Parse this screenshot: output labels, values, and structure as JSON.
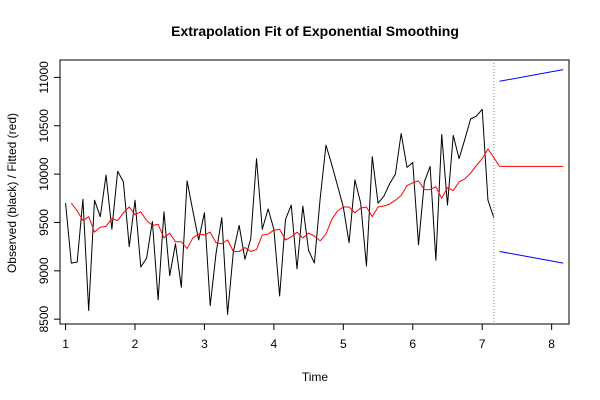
{
  "chart_data": {
    "type": "line",
    "title": "Extrapolation Fit of Exponential Smoothing",
    "xlabel": "Time",
    "ylabel": "Observed (black) / Fitted (red)",
    "xlim": [
      0.92,
      8.25
    ],
    "ylim": [
      8450,
      11180
    ],
    "x_ticks": [
      1,
      2,
      3,
      4,
      5,
      6,
      7,
      8
    ],
    "y_ticks": [
      8500,
      9000,
      9500,
      10000,
      10500,
      11000
    ],
    "forecast_origin": 7.167,
    "grid": false,
    "colors": {
      "observed": "#000000",
      "fitted": "#ff0000",
      "forecast": "#ff0000",
      "bounds": "#0000ff",
      "origin_line": "#888888"
    },
    "series": [
      {
        "key": "observed",
        "points": [
          [
            1.0,
            9700
          ],
          [
            1.083,
            9080
          ],
          [
            1.167,
            9090
          ],
          [
            1.25,
            9740
          ],
          [
            1.333,
            8590
          ],
          [
            1.417,
            9730
          ],
          [
            1.5,
            9560
          ],
          [
            1.583,
            9990
          ],
          [
            1.667,
            9430
          ],
          [
            1.75,
            10030
          ],
          [
            1.833,
            9920
          ],
          [
            1.917,
            9250
          ],
          [
            2.0,
            9730
          ],
          [
            2.083,
            9040
          ],
          [
            2.167,
            9130
          ],
          [
            2.25,
            9510
          ],
          [
            2.333,
            8700
          ],
          [
            2.417,
            9610
          ],
          [
            2.5,
            8950
          ],
          [
            2.583,
            9280
          ],
          [
            2.667,
            8830
          ],
          [
            2.75,
            9930
          ],
          [
            2.833,
            9620
          ],
          [
            2.917,
            9320
          ],
          [
            3.0,
            9600
          ],
          [
            3.083,
            8640
          ],
          [
            3.167,
            9180
          ],
          [
            3.25,
            9550
          ],
          [
            3.333,
            8550
          ],
          [
            3.417,
            9200
          ],
          [
            3.5,
            9470
          ],
          [
            3.583,
            9120
          ],
          [
            3.667,
            9330
          ],
          [
            3.75,
            10160
          ],
          [
            3.833,
            9430
          ],
          [
            3.917,
            9640
          ],
          [
            4.0,
            9430
          ],
          [
            4.083,
            8740
          ],
          [
            4.167,
            9530
          ],
          [
            4.25,
            9680
          ],
          [
            4.333,
            9020
          ],
          [
            4.417,
            9670
          ],
          [
            4.5,
            9210
          ],
          [
            4.583,
            9080
          ],
          [
            4.667,
            9750
          ],
          [
            4.75,
            10300
          ],
          [
            4.833,
            10100
          ],
          [
            4.917,
            9880
          ],
          [
            5.0,
            9660
          ],
          [
            5.083,
            9290
          ],
          [
            5.167,
            9940
          ],
          [
            5.25,
            9700
          ],
          [
            5.333,
            9050
          ],
          [
            5.417,
            10180
          ],
          [
            5.5,
            9700
          ],
          [
            5.583,
            9770
          ],
          [
            5.667,
            9900
          ],
          [
            5.75,
            10000
          ],
          [
            5.833,
            10420
          ],
          [
            5.917,
            10070
          ],
          [
            6.0,
            10120
          ],
          [
            6.083,
            9270
          ],
          [
            6.167,
            9920
          ],
          [
            6.25,
            10080
          ],
          [
            6.333,
            9110
          ],
          [
            6.417,
            10410
          ],
          [
            6.5,
            9680
          ],
          [
            6.583,
            10400
          ],
          [
            6.667,
            10160
          ],
          [
            6.75,
            10360
          ],
          [
            6.833,
            10570
          ],
          [
            6.917,
            10600
          ],
          [
            7.0,
            10670
          ],
          [
            7.083,
            9730
          ],
          [
            7.167,
            9550
          ]
        ]
      },
      {
        "key": "fitted",
        "points": [
          [
            1.083,
            9700
          ],
          [
            1.167,
            9620
          ],
          [
            1.25,
            9520
          ],
          [
            1.333,
            9560
          ],
          [
            1.417,
            9400
          ],
          [
            1.5,
            9450
          ],
          [
            1.583,
            9460
          ],
          [
            1.667,
            9540
          ],
          [
            1.75,
            9520
          ],
          [
            1.833,
            9600
          ],
          [
            1.917,
            9660
          ],
          [
            2.0,
            9580
          ],
          [
            2.083,
            9610
          ],
          [
            2.167,
            9520
          ],
          [
            2.25,
            9470
          ],
          [
            2.333,
            9480
          ],
          [
            2.417,
            9340
          ],
          [
            2.5,
            9390
          ],
          [
            2.583,
            9300
          ],
          [
            2.667,
            9300
          ],
          [
            2.75,
            9230
          ],
          [
            2.833,
            9340
          ],
          [
            2.917,
            9380
          ],
          [
            3.0,
            9370
          ],
          [
            3.083,
            9400
          ],
          [
            3.167,
            9290
          ],
          [
            3.25,
            9280
          ],
          [
            3.333,
            9320
          ],
          [
            3.417,
            9200
          ],
          [
            3.5,
            9200
          ],
          [
            3.583,
            9240
          ],
          [
            3.667,
            9200
          ],
          [
            3.75,
            9220
          ],
          [
            3.833,
            9370
          ],
          [
            3.917,
            9380
          ],
          [
            4.0,
            9420
          ],
          [
            4.083,
            9430
          ],
          [
            4.167,
            9320
          ],
          [
            4.25,
            9350
          ],
          [
            4.333,
            9400
          ],
          [
            4.417,
            9340
          ],
          [
            4.5,
            9390
          ],
          [
            4.583,
            9360
          ],
          [
            4.667,
            9310
          ],
          [
            4.75,
            9380
          ],
          [
            4.833,
            9530
          ],
          [
            4.917,
            9620
          ],
          [
            5.0,
            9660
          ],
          [
            5.083,
            9660
          ],
          [
            5.167,
            9600
          ],
          [
            5.25,
            9650
          ],
          [
            5.333,
            9660
          ],
          [
            5.417,
            9560
          ],
          [
            5.5,
            9660
          ],
          [
            5.583,
            9670
          ],
          [
            5.667,
            9690
          ],
          [
            5.75,
            9730
          ],
          [
            5.833,
            9780
          ],
          [
            5.917,
            9880
          ],
          [
            6.0,
            9910
          ],
          [
            6.083,
            9930
          ],
          [
            6.167,
            9840
          ],
          [
            6.25,
            9840
          ],
          [
            6.333,
            9870
          ],
          [
            6.417,
            9750
          ],
          [
            6.5,
            9860
          ],
          [
            6.583,
            9830
          ],
          [
            6.667,
            9920
          ],
          [
            6.75,
            9950
          ],
          [
            6.833,
            10010
          ],
          [
            6.917,
            10090
          ],
          [
            7.0,
            10160
          ],
          [
            7.083,
            10260
          ],
          [
            7.167,
            10170
          ],
          [
            7.25,
            10080
          ]
        ]
      },
      {
        "key": "forecast",
        "points": [
          [
            7.25,
            10080
          ],
          [
            8.167,
            10080
          ]
        ]
      },
      {
        "key": "upper",
        "points": [
          [
            7.25,
            10960
          ],
          [
            8.167,
            11080
          ]
        ]
      },
      {
        "key": "lower",
        "points": [
          [
            7.25,
            9200
          ],
          [
            8.167,
            9080
          ]
        ]
      }
    ]
  }
}
